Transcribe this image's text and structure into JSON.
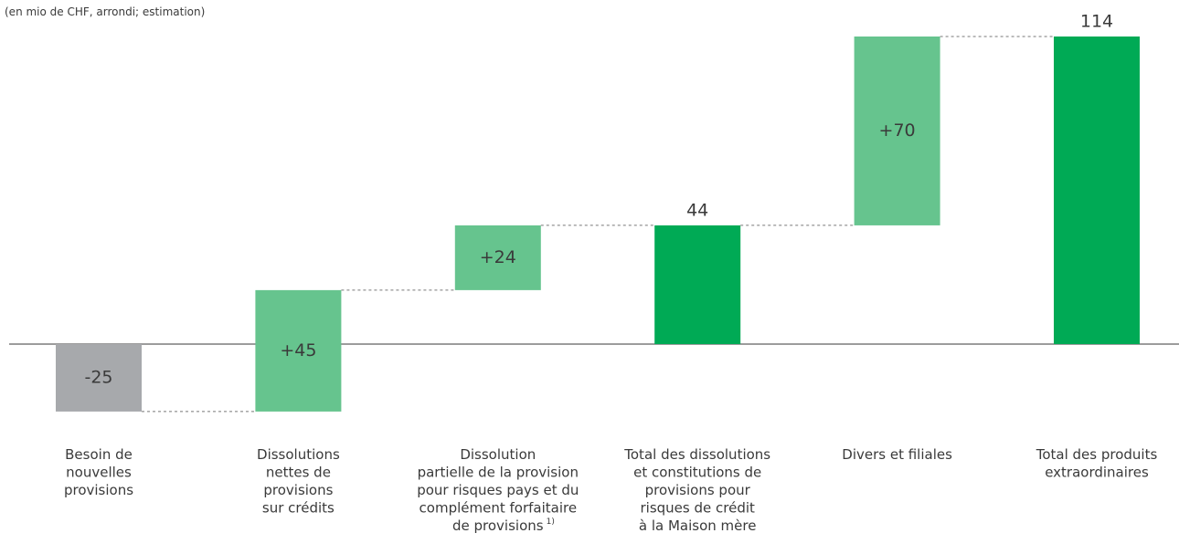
{
  "chart_data": {
    "type": "waterfall",
    "subtitle": "(en mio de CHF, arrondi; estimation)",
    "categories": [
      "Besoin de\nnouvelles\nprovisions",
      "Dissolutions\nnettes de\nprovisions\nsur crédits",
      "Dissolution\npartielle de la provision\npour risques pays et du\ncomplément forfaitaire\nde provisions",
      "Total des dissolutions\net constitutions de\nprovisions pour\nrisques de crédit\nà la Maison mère",
      "Divers et filiales",
      "Total des produits\nextraordinaires"
    ],
    "category_footnotes": [
      null,
      null,
      "1)",
      null,
      null,
      null
    ],
    "values": [
      -25,
      45,
      24,
      44,
      70,
      114
    ],
    "value_labels": [
      "-25",
      "+45",
      "+24",
      "44",
      "+70",
      "114"
    ],
    "measures": [
      "relative",
      "relative",
      "relative",
      "total",
      "relative",
      "total"
    ],
    "colors": {
      "decrease": "#a7a9ac",
      "increase": "#66c48e",
      "total": "#00aa55"
    }
  }
}
